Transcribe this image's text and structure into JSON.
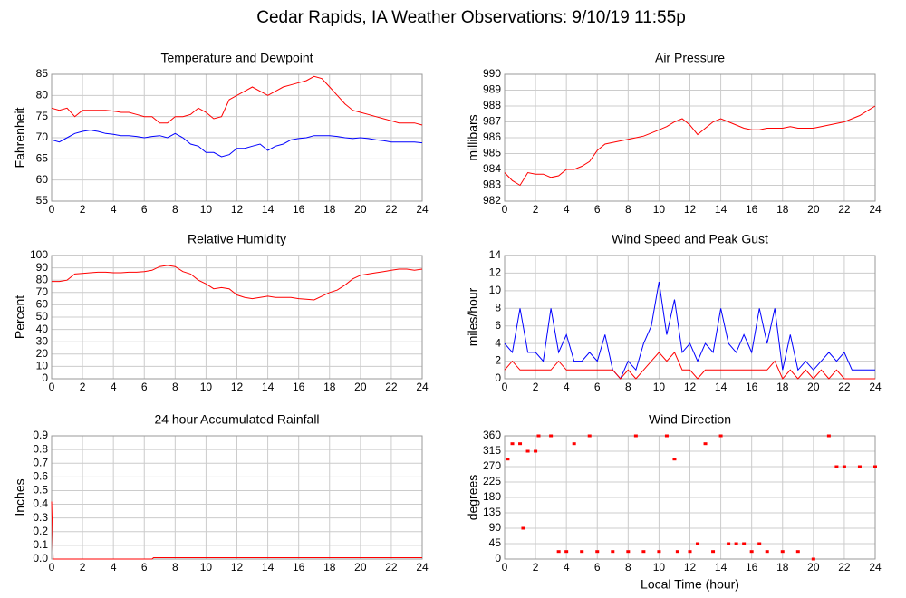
{
  "title": "Cedar Rapids, IA Weather Observations: 9/10/19 11:55p",
  "chart_data": [
    {
      "type": "line",
      "title": "Temperature and Dewpoint",
      "y_label": "Fahrenheit",
      "x": [
        0,
        0.5,
        1,
        1.5,
        2,
        2.5,
        3,
        3.5,
        4,
        4.5,
        5,
        5.5,
        6,
        6.5,
        7,
        7.5,
        8,
        8.5,
        9,
        9.5,
        10,
        10.5,
        11,
        11.5,
        12,
        12.5,
        13,
        13.5,
        14,
        14.5,
        15,
        15.5,
        16,
        16.5,
        17,
        17.5,
        18,
        18.5,
        19,
        19.5,
        20,
        20.5,
        21,
        21.5,
        22,
        22.5,
        23,
        23.5,
        24
      ],
      "series": [
        {
          "color": "#ff0000",
          "values": [
            77,
            76.5,
            77,
            75,
            76.5,
            76.5,
            76.5,
            76.5,
            76.3,
            76,
            76,
            75.5,
            75,
            75,
            73.5,
            73.5,
            75,
            75,
            75.5,
            77,
            76,
            74.5,
            75,
            79,
            80,
            81,
            82,
            81,
            80,
            81,
            82,
            82.5,
            83,
            83.5,
            84.5,
            84,
            82,
            80,
            78,
            76.5,
            76,
            75.5,
            75,
            74.5,
            74,
            73.5,
            73.5,
            73.5,
            73
          ]
        },
        {
          "color": "#0000ff",
          "values": [
            69.5,
            69,
            70,
            71,
            71.5,
            71.8,
            71.5,
            71,
            70.8,
            70.5,
            70.5,
            70.3,
            70,
            70.3,
            70.5,
            70,
            71,
            70,
            68.5,
            68,
            66.5,
            66.5,
            65.5,
            66,
            67.5,
            67.5,
            68,
            68.5,
            67,
            68,
            68.5,
            69.5,
            69.8,
            70,
            70.5,
            70.5,
            70.5,
            70.3,
            70,
            69.8,
            70,
            69.8,
            69.5,
            69.3,
            69,
            69,
            69,
            69,
            68.8
          ]
        }
      ],
      "xlim": [
        0,
        24
      ],
      "xticks": [
        0,
        2,
        4,
        6,
        8,
        10,
        12,
        14,
        16,
        18,
        20,
        22,
        24
      ],
      "ylim": [
        55,
        85
      ],
      "yticks": [
        55,
        60,
        65,
        70,
        75,
        80,
        85
      ],
      "grid": true
    },
    {
      "type": "line",
      "title": "Air Pressure",
      "y_label": "millibars",
      "x": [
        0,
        0.5,
        1,
        1.5,
        2,
        2.5,
        3,
        3.5,
        4,
        4.5,
        5,
        5.5,
        6,
        6.5,
        7,
        7.5,
        8,
        8.5,
        9,
        9.5,
        10,
        10.5,
        11,
        11.5,
        12,
        12.5,
        13,
        13.5,
        14,
        14.5,
        15,
        15.5,
        16,
        16.5,
        17,
        17.5,
        18,
        18.5,
        19,
        19.5,
        20,
        20.5,
        21,
        21.5,
        22,
        22.5,
        23,
        23.5,
        24
      ],
      "series": [
        {
          "color": "#ff0000",
          "values": [
            983.8,
            983.3,
            983,
            983.8,
            983.7,
            983.7,
            983.5,
            983.6,
            984,
            984,
            984.2,
            984.5,
            985.2,
            985.6,
            985.7,
            985.8,
            985.9,
            986,
            986.1,
            986.3,
            986.5,
            986.7,
            987,
            987.2,
            986.8,
            986.2,
            986.6,
            987,
            987.2,
            987,
            986.8,
            986.6,
            986.5,
            986.5,
            986.6,
            986.6,
            986.6,
            986.7,
            986.6,
            986.6,
            986.6,
            986.7,
            986.8,
            986.9,
            987,
            987.2,
            987.4,
            987.7,
            988
          ]
        }
      ],
      "xlim": [
        0,
        24
      ],
      "xticks": [
        0,
        2,
        4,
        6,
        8,
        10,
        12,
        14,
        16,
        18,
        20,
        22,
        24
      ],
      "ylim": [
        982,
        990
      ],
      "yticks": [
        982,
        983,
        984,
        985,
        986,
        987,
        988,
        989,
        990
      ],
      "grid": true
    },
    {
      "type": "line",
      "title": "Relative Humidity",
      "y_label": "Percent",
      "x": [
        0,
        0.5,
        1,
        1.5,
        2,
        2.5,
        3,
        3.5,
        4,
        4.5,
        5,
        5.5,
        6,
        6.5,
        7,
        7.5,
        8,
        8.5,
        9,
        9.5,
        10,
        10.5,
        11,
        11.5,
        12,
        12.5,
        13,
        13.5,
        14,
        14.5,
        15,
        15.5,
        16,
        16.5,
        17,
        17.5,
        18,
        18.5,
        19,
        19.5,
        20,
        20.5,
        21,
        21.5,
        22,
        22.5,
        23,
        23.5,
        24
      ],
      "series": [
        {
          "color": "#ff0000",
          "values": [
            79,
            79,
            80,
            85,
            85.5,
            86,
            86.5,
            86.5,
            86,
            86,
            86.5,
            86.5,
            87,
            88,
            91,
            92,
            91,
            87,
            85,
            80,
            77,
            73,
            74,
            73,
            68,
            66,
            65,
            66,
            67,
            66,
            66,
            66,
            65,
            64.5,
            64,
            67,
            70,
            72,
            76,
            81,
            84,
            85,
            86,
            87,
            88,
            89,
            89,
            88,
            89
          ]
        }
      ],
      "xlim": [
        0,
        24
      ],
      "xticks": [
        0,
        2,
        4,
        6,
        8,
        10,
        12,
        14,
        16,
        18,
        20,
        22,
        24
      ],
      "ylim": [
        0,
        100
      ],
      "yticks": [
        0,
        10,
        20,
        30,
        40,
        50,
        60,
        70,
        80,
        90,
        100
      ],
      "grid": true
    },
    {
      "type": "line",
      "title": "Wind Speed and Peak Gust",
      "y_label": "miles/hour",
      "x": [
        0,
        0.5,
        1,
        1.5,
        2,
        2.5,
        3,
        3.5,
        4,
        4.5,
        5,
        5.5,
        6,
        6.5,
        7,
        7.5,
        8,
        8.5,
        9,
        9.5,
        10,
        10.5,
        11,
        11.5,
        12,
        12.5,
        13,
        13.5,
        14,
        14.5,
        15,
        15.5,
        16,
        16.5,
        17,
        17.5,
        18,
        18.5,
        19,
        19.5,
        20,
        20.5,
        21,
        21.5,
        22,
        22.5,
        23,
        23.5,
        24
      ],
      "series": [
        {
          "color": "#0000ff",
          "values": [
            4,
            3,
            8,
            3,
            3,
            2,
            8,
            3,
            5,
            2,
            2,
            3,
            2,
            5,
            1,
            0,
            2,
            1,
            4,
            6,
            11,
            5,
            9,
            3,
            4,
            2,
            4,
            3,
            8,
            4,
            3,
            5,
            3,
            8,
            4,
            8,
            1,
            5,
            1,
            2,
            1,
            2,
            3,
            2,
            3,
            1,
            1,
            1,
            1
          ]
        },
        {
          "color": "#ff0000",
          "values": [
            1,
            2,
            1,
            1,
            1,
            1,
            1,
            2,
            1,
            1,
            1,
            1,
            1,
            1,
            1,
            0,
            1,
            0,
            1,
            2,
            3,
            2,
            3,
            1,
            1,
            0,
            1,
            1,
            1,
            1,
            1,
            1,
            1,
            1,
            1,
            2,
            0,
            1,
            0,
            1,
            0,
            1,
            0,
            1,
            0,
            0,
            0,
            0,
            0
          ]
        }
      ],
      "xlim": [
        0,
        24
      ],
      "xticks": [
        0,
        2,
        4,
        6,
        8,
        10,
        12,
        14,
        16,
        18,
        20,
        22,
        24
      ],
      "ylim": [
        0,
        14
      ],
      "yticks": [
        0,
        2,
        4,
        6,
        8,
        10,
        12,
        14
      ],
      "grid": true
    },
    {
      "type": "line",
      "title": "24 hour Accumulated Rainfall",
      "y_label": "Inches",
      "x": [
        0,
        0.1,
        6.5,
        6.6,
        24
      ],
      "series": [
        {
          "color": "#ff0000",
          "values": [
            0.42,
            0,
            0,
            0.01,
            0.01
          ]
        }
      ],
      "xlim": [
        0,
        24
      ],
      "xticks": [
        0,
        2,
        4,
        6,
        8,
        10,
        12,
        14,
        16,
        18,
        20,
        22,
        24
      ],
      "ylim": [
        0,
        0.9
      ],
      "yticks": [
        {
          "value": 0,
          "label": "0.0"
        },
        0.1,
        0.2,
        0.3,
        0.4,
        0.5,
        0.6,
        0.7,
        0.8,
        0.9
      ],
      "grid": true
    },
    {
      "type": "scatter",
      "title": "Wind Direction",
      "y_label": "degrees",
      "x_label": "Local Time (hour)",
      "color": "#ff0000",
      "x": [
        0.2,
        0.5,
        1,
        1.2,
        1.5,
        2,
        2.2,
        3,
        3.5,
        4,
        4.5,
        5,
        5.5,
        6,
        7,
        8,
        8.5,
        9,
        10,
        10.5,
        11,
        11.2,
        12,
        12.5,
        13,
        13.5,
        14,
        14.5,
        15,
        15.5,
        16,
        16.5,
        17,
        18,
        19,
        20,
        21,
        21.5,
        22,
        23,
        24
      ],
      "values": [
        292,
        337,
        337,
        90,
        315,
        315,
        360,
        360,
        22,
        22,
        337,
        22,
        360,
        22,
        22,
        22,
        360,
        22,
        22,
        360,
        292,
        22,
        22,
        45,
        337,
        22,
        360,
        45,
        45,
        45,
        22,
        45,
        22,
        22,
        22,
        0,
        360,
        270,
        270,
        270,
        270
      ],
      "xlim": [
        0,
        24
      ],
      "xticks": [
        0,
        2,
        4,
        6,
        8,
        10,
        12,
        14,
        16,
        18,
        20,
        22,
        24
      ],
      "ylim": [
        0,
        360
      ],
      "yticks": [
        0,
        45,
        90,
        135,
        180,
        225,
        270,
        315,
        360
      ],
      "grid": true
    }
  ]
}
